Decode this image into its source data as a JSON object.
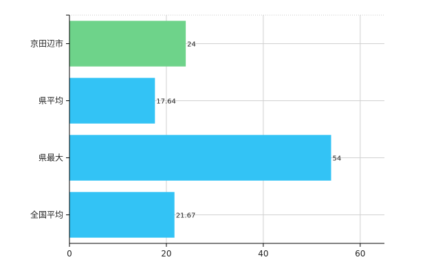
{
  "chart_data": {
    "type": "bar",
    "orientation": "horizontal",
    "categories": [
      "京田辺市",
      "県平均",
      "県最大",
      "全国平均"
    ],
    "values": [
      24,
      17.64,
      54,
      21.67
    ],
    "data_labels": [
      "24",
      "17.64",
      "54",
      "21.67"
    ],
    "bar_colors": [
      "#6ed38a",
      "#33c3f5",
      "#33c3f5",
      "#33c3f5"
    ],
    "xlim": [
      0,
      65
    ],
    "xticks": [
      0,
      20,
      40,
      60
    ],
    "grid": true,
    "title": "",
    "xlabel": "",
    "ylabel": ""
  }
}
